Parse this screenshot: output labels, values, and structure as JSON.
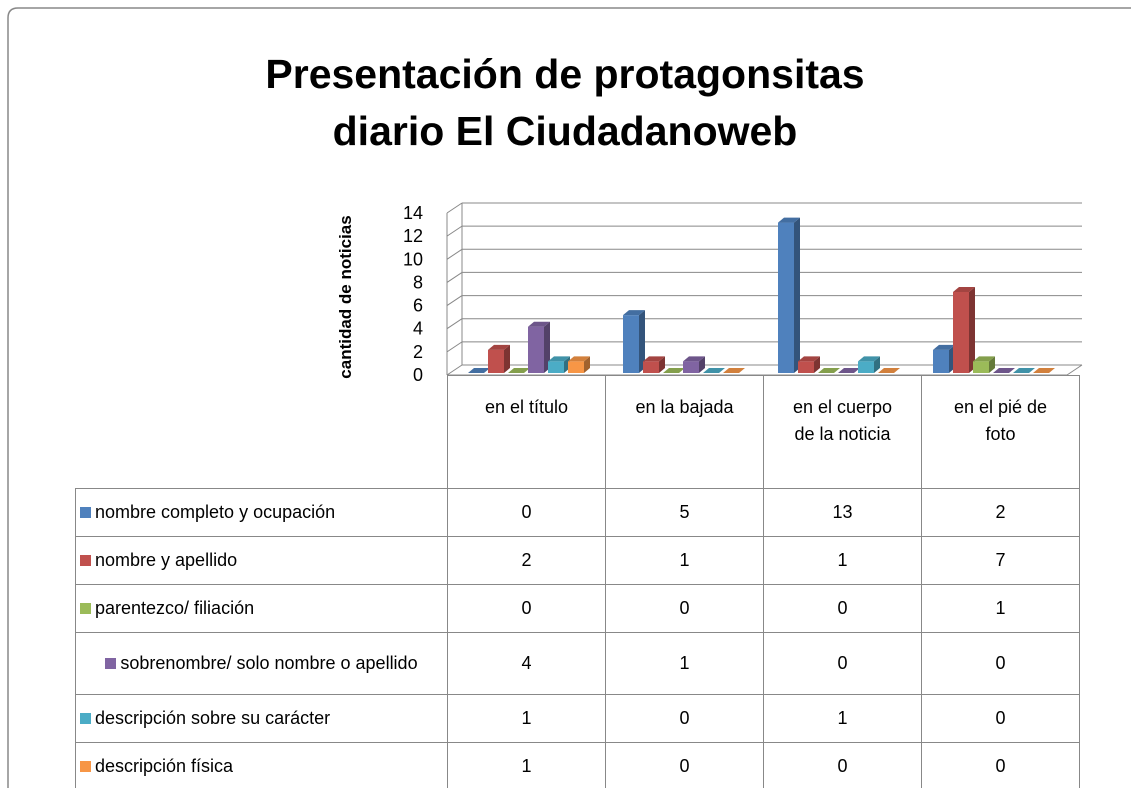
{
  "chart_data": {
    "type": "bar3d",
    "title": [
      "Presentación de protagonsitas",
      "diario El Ciudadanoweb"
    ],
    "ylabel": "cantidad de noticias",
    "categories": [
      "en el título",
      "en la bajada",
      "en el cuerpo de la noticia",
      "en el pié de foto"
    ],
    "ylim": [
      0,
      14
    ],
    "yticks": [
      0,
      2,
      4,
      6,
      8,
      10,
      12,
      14
    ],
    "grid": true,
    "series": [
      {
        "name": "nombre completo y ocupación",
        "color": "#4f81bd",
        "values": [
          0,
          5,
          13,
          2
        ]
      },
      {
        "name": "nombre y apellido",
        "color": "#c0504d",
        "values": [
          2,
          1,
          1,
          7
        ]
      },
      {
        "name": "parentezco/ filiación",
        "color": "#9bbb59",
        "values": [
          0,
          0,
          0,
          1
        ]
      },
      {
        "name": "sobrenombre/ solo nombre o apellido",
        "color": "#8064a2",
        "values": [
          4,
          1,
          0,
          0
        ]
      },
      {
        "name": "descripción sobre su carácter",
        "color": "#4bacc6",
        "values": [
          1,
          0,
          1,
          0
        ]
      },
      {
        "name": "descripción física",
        "color": "#f79646",
        "values": [
          1,
          0,
          0,
          0
        ]
      }
    ]
  }
}
